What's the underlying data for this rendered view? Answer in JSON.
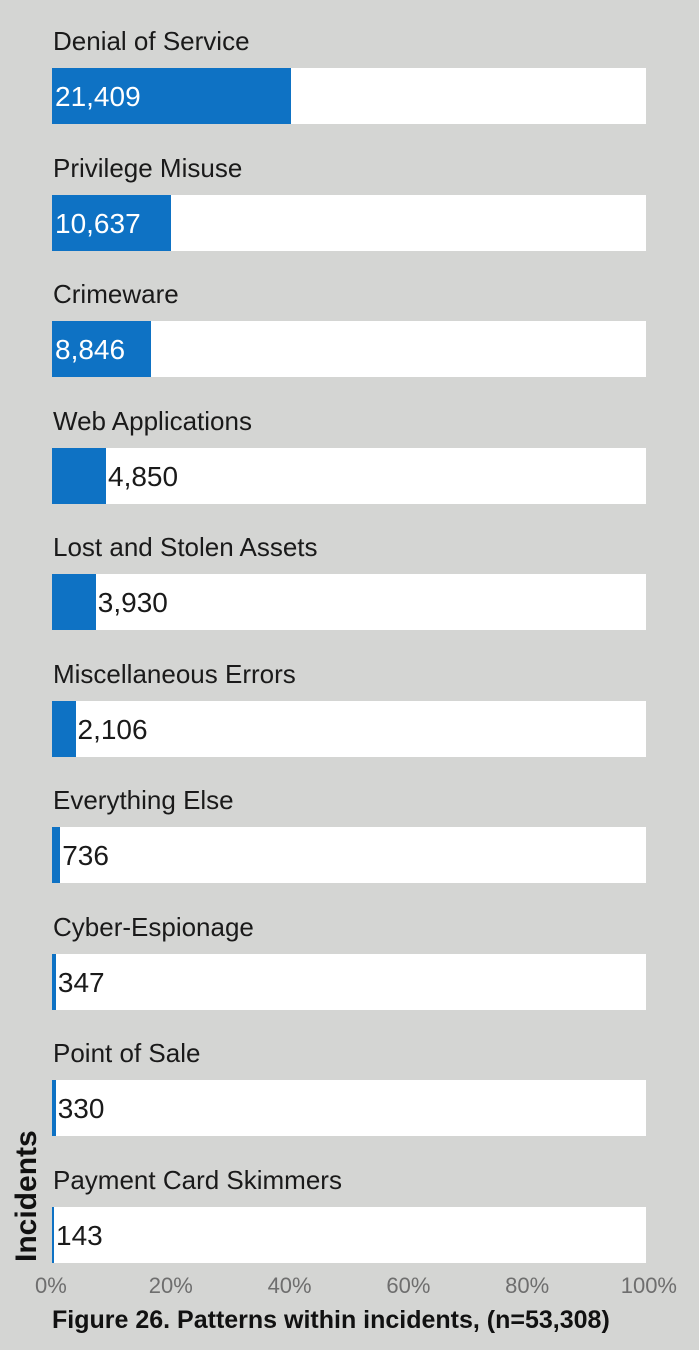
{
  "chart_data": {
    "type": "bar",
    "orientation": "horizontal",
    "categories": [
      "Denial of Service",
      "Privilege Misuse",
      "Crimeware",
      "Web Applications",
      "Lost and Stolen Assets",
      "Miscellaneous Errors",
      "Everything Else",
      "Cyber-Espionage",
      "Point of Sale",
      "Payment Card Skimmers"
    ],
    "values": [
      21409,
      10637,
      8846,
      4850,
      3930,
      2106,
      736,
      347,
      330,
      143
    ],
    "value_labels": [
      "21,409",
      "10,637",
      "8,846",
      "4,850",
      "3,930",
      "2,106",
      "736",
      "347",
      "330",
      "143"
    ],
    "total": 53308,
    "xlim": [
      0,
      100
    ],
    "x_ticks": [
      "0%",
      "20%",
      "40%",
      "60%",
      "80%",
      "100%"
    ],
    "ylabel": "Incidents",
    "caption": "Figure 26.  Patterns within incidents, (n=53,308)",
    "grid": false,
    "colors": {
      "bar": "#0e72c4",
      "track": "#ffffff",
      "background": "#d4d5d3"
    }
  }
}
